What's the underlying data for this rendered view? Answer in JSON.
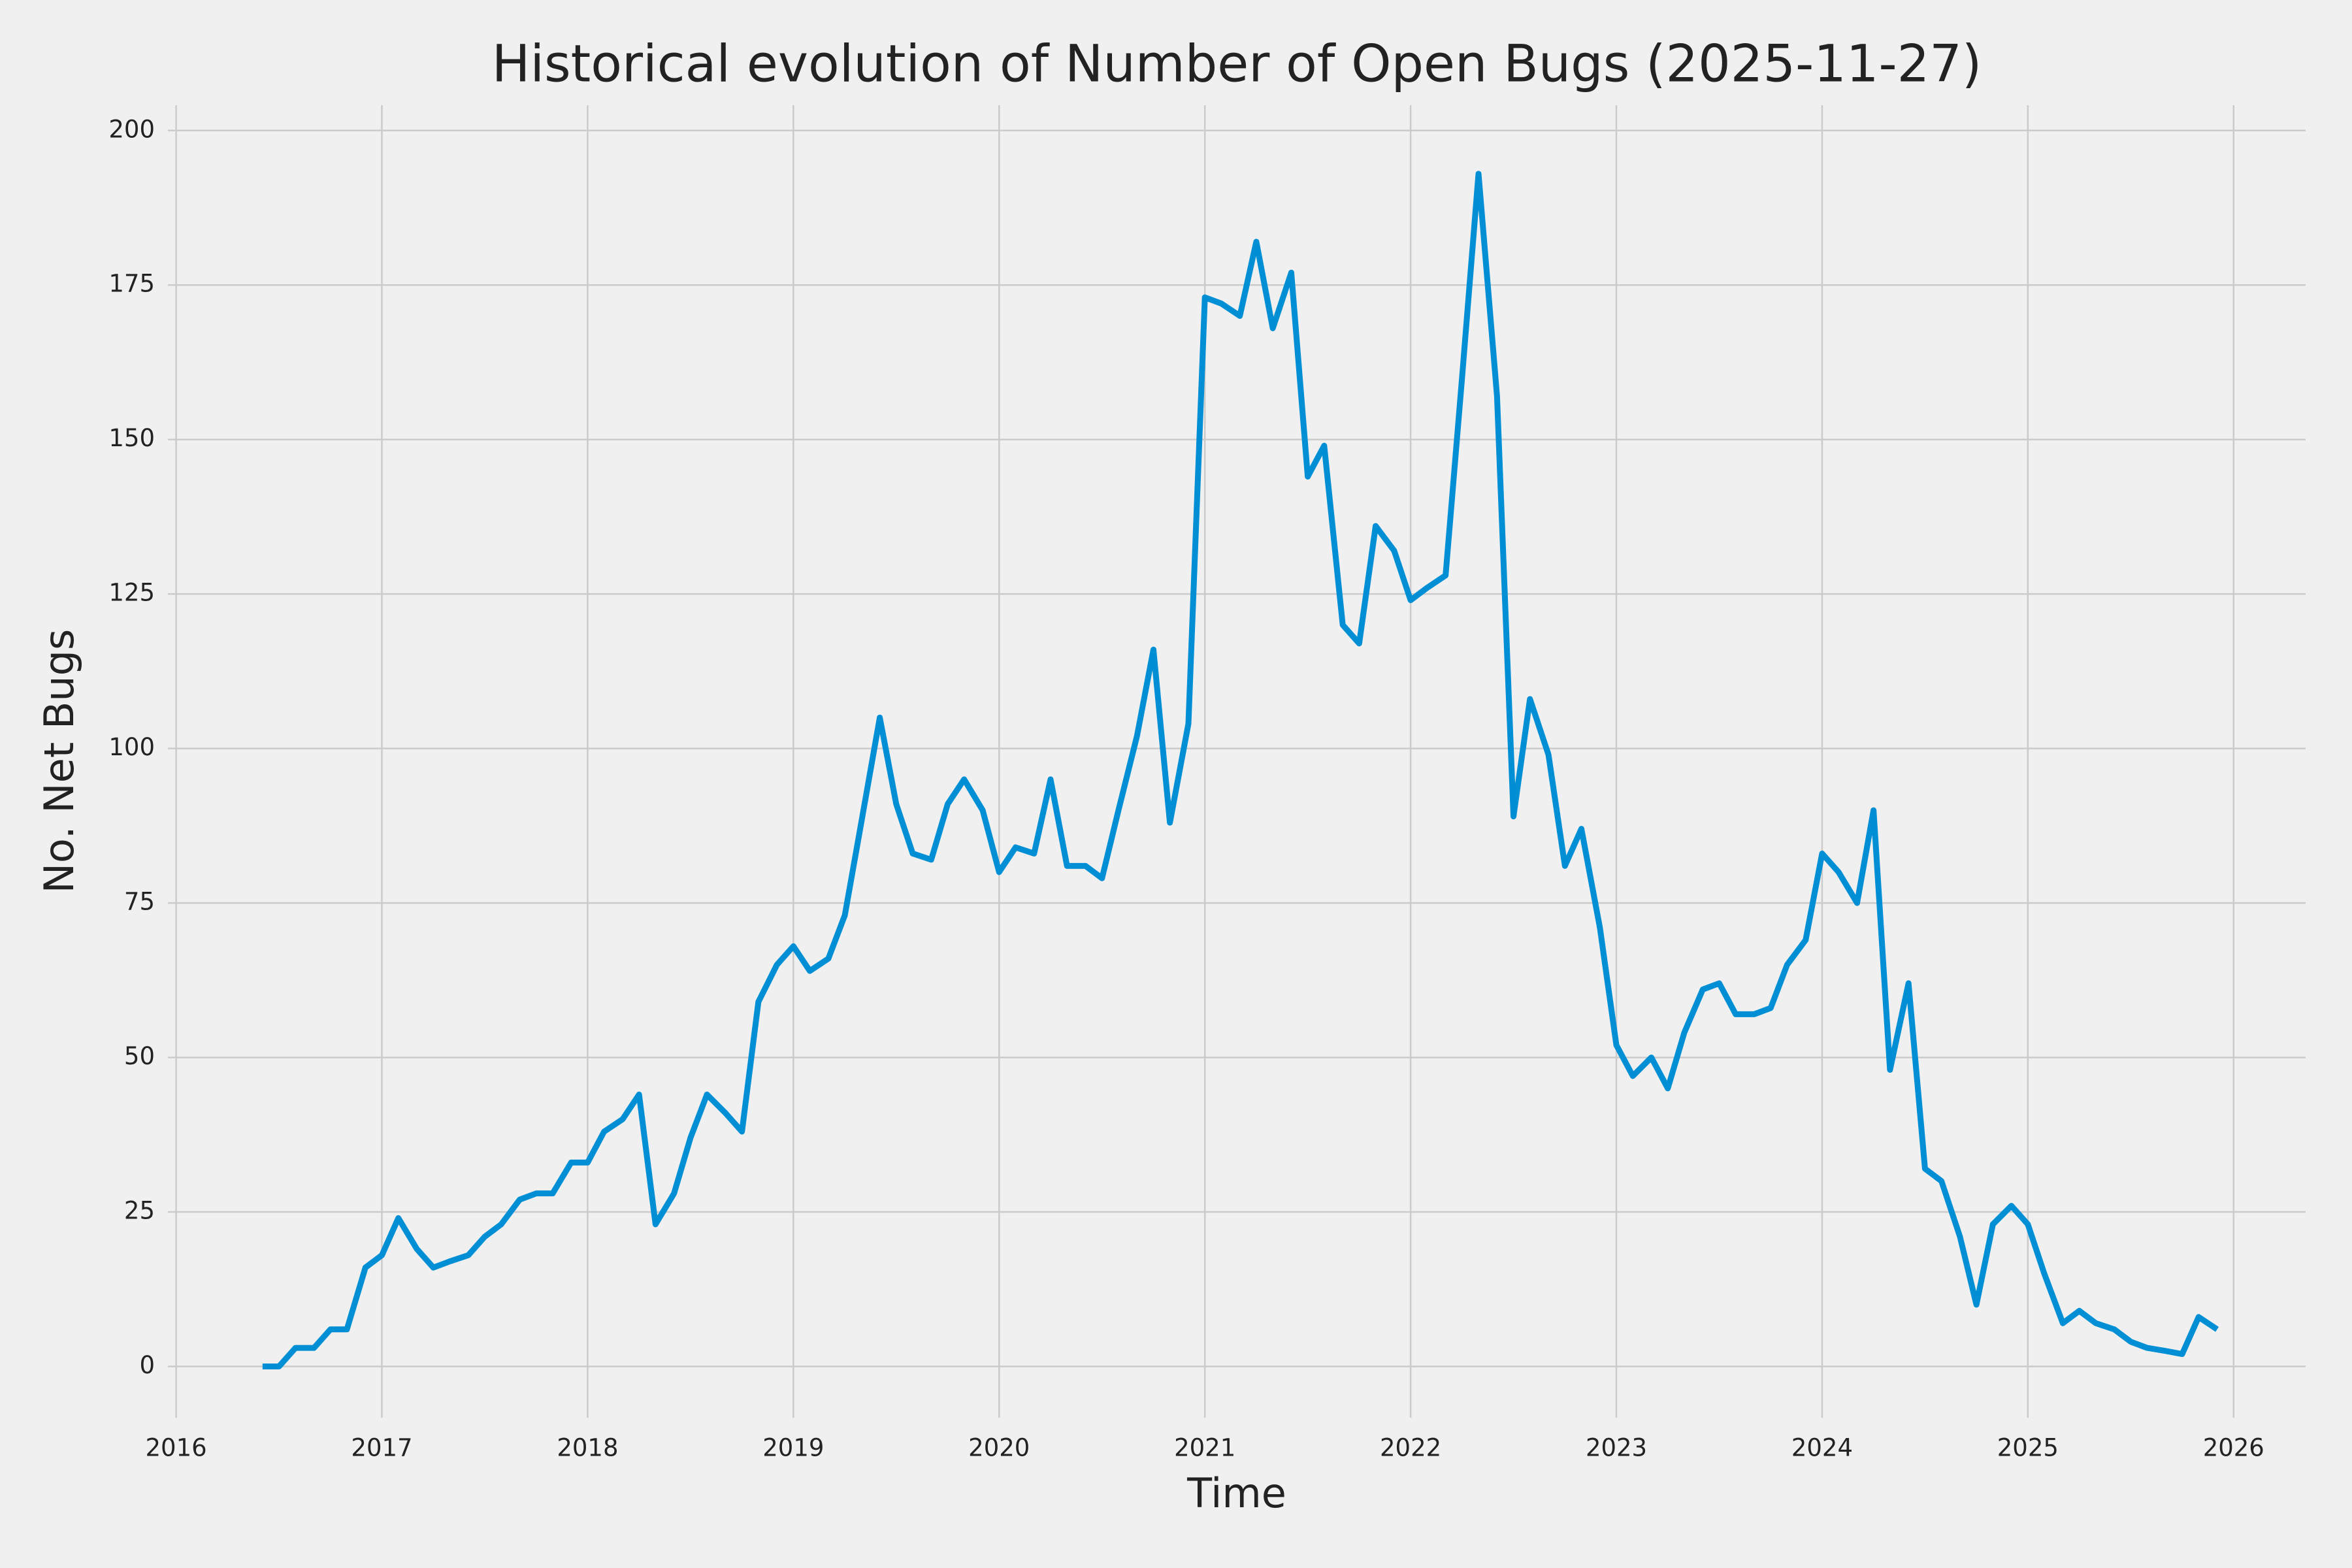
{
  "chart_data": {
    "type": "line",
    "title": "Historical evolution of Number of Open Bugs (2025-11-27)",
    "x_label": "Time",
    "y_label": "No. Net Bugs",
    "x": [
      2016.42,
      2016.5,
      2016.58,
      2016.67,
      2016.75,
      2016.83,
      2016.92,
      2017.0,
      2017.08,
      2017.17,
      2017.25,
      2017.33,
      2017.42,
      2017.5,
      2017.58,
      2017.67,
      2017.75,
      2017.83,
      2017.92,
      2018.0,
      2018.08,
      2018.17,
      2018.25,
      2018.33,
      2018.42,
      2018.5,
      2018.58,
      2018.67,
      2018.75,
      2018.83,
      2018.92,
      2019.0,
      2019.08,
      2019.17,
      2019.25,
      2019.33,
      2019.42,
      2019.5,
      2019.58,
      2019.67,
      2019.75,
      2019.83,
      2019.92,
      2020.0,
      2020.08,
      2020.17,
      2020.25,
      2020.33,
      2020.42,
      2020.5,
      2020.58,
      2020.67,
      2020.75,
      2020.83,
      2020.92,
      2021.0,
      2021.08,
      2021.17,
      2021.25,
      2021.33,
      2021.42,
      2021.5,
      2021.58,
      2021.67,
      2021.75,
      2021.83,
      2021.92,
      2022.0,
      2022.08,
      2022.17,
      2022.25,
      2022.33,
      2022.42,
      2022.5,
      2022.58,
      2022.67,
      2022.75,
      2022.83,
      2022.92,
      2023.0,
      2023.08,
      2023.17,
      2023.25,
      2023.33,
      2023.42,
      2023.5,
      2023.58,
      2023.67,
      2023.75,
      2023.83,
      2023.92,
      2024.0,
      2024.08,
      2024.17,
      2024.25,
      2024.33,
      2024.42,
      2024.5,
      2024.58,
      2024.67,
      2024.75,
      2024.83,
      2024.92,
      2025.0,
      2025.08,
      2025.17,
      2025.25,
      2025.33,
      2025.42,
      2025.5,
      2025.58,
      2025.67,
      2025.75,
      2025.83,
      2025.92
    ],
    "series": [
      {
        "color": "#008fd5",
        "values": [
          0,
          0,
          3,
          3,
          6,
          6,
          16,
          18,
          24,
          19,
          16,
          17,
          18,
          21,
          23,
          27,
          28,
          28,
          33,
          33,
          38,
          40,
          44,
          23,
          28,
          37,
          44,
          41,
          38,
          59,
          65,
          68,
          64,
          66,
          73,
          88,
          105,
          91,
          83,
          82,
          91,
          95,
          90,
          80,
          84,
          83,
          95,
          81,
          81,
          79,
          90,
          102,
          116,
          88,
          104,
          173,
          172,
          170,
          182,
          168,
          177,
          144,
          149,
          120,
          117,
          136,
          132,
          124,
          126,
          128,
          160,
          193,
          157,
          89,
          108,
          99,
          81,
          87,
          71,
          52,
          47,
          50,
          45,
          54,
          61,
          62,
          57,
          57,
          58,
          65,
          69,
          83,
          80,
          75,
          90,
          48,
          62,
          32,
          30,
          21,
          10,
          23,
          26,
          23,
          15,
          7,
          9,
          7,
          6,
          4,
          3,
          2.5,
          2,
          8,
          6
        ]
      }
    ],
    "xlim": [
      2015.96,
      2026.35
    ],
    "xticks": [
      2016,
      2017,
      2018,
      2019,
      2020,
      2021,
      2022,
      2023,
      2024,
      2025,
      2026
    ],
    "ylim": [
      -8.3,
      204.1
    ],
    "yticks": [
      0,
      25,
      50,
      75,
      100,
      125,
      150,
      175,
      200
    ],
    "grid": true
  }
}
